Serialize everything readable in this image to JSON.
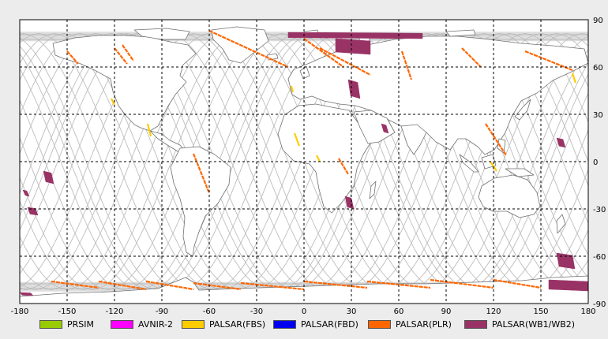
{
  "map": {
    "lon_range": [
      -180,
      180
    ],
    "lat_range": [
      -90,
      90
    ],
    "lon_ticks": [
      "-180",
      "-150",
      "-120",
      "-90",
      "-60",
      "-30",
      "0",
      "30",
      "60",
      "90",
      "120",
      "150",
      "180"
    ],
    "lat_ticks": [
      "90",
      "60",
      "30",
      "0",
      "-30",
      "-60",
      "-90"
    ],
    "grid": "dashed",
    "projection": "equirectangular",
    "colors": {
      "background": "#ececec",
      "ocean": "#ffffff",
      "coastline": "#707070",
      "orbit_track": "#bdbdbd",
      "grid": "#000000"
    }
  },
  "legend": [
    {
      "label": "PRSIM",
      "color": "#99cc00"
    },
    {
      "label": "AVNIR-2",
      "color": "#ff00ff"
    },
    {
      "label": "PALSAR(FBS)",
      "color": "#ffcc00"
    },
    {
      "label": "PALSAR(FBD)",
      "color": "#0000ee"
    },
    {
      "label": "PALSAR(PLR)",
      "color": "#ff6600"
    },
    {
      "label": "PALSAR(WB1/WB2)",
      "color": "#993366"
    }
  ],
  "observations": {
    "wb": [
      {
        "lon": [
          -10,
          75
        ],
        "lat": [
          82,
          78
        ]
      },
      {
        "lon": [
          20,
          42
        ],
        "lat": [
          78,
          68
        ]
      },
      {
        "lon": [
          28,
          34
        ],
        "lat": [
          52,
          40
        ]
      },
      {
        "lon": [
          49,
          52
        ],
        "lat": [
          24,
          18
        ]
      },
      {
        "lon": [
          26,
          30
        ],
        "lat": [
          -22,
          -30
        ]
      },
      {
        "lon": [
          -165,
          -160
        ],
        "lat": [
          -6,
          -14
        ]
      },
      {
        "lon": [
          -178,
          -176
        ],
        "lat": [
          -18,
          -22
        ]
      },
      {
        "lon": [
          -175,
          -170
        ],
        "lat": [
          -29,
          -34
        ]
      },
      {
        "lon": [
          160,
          164
        ],
        "lat": [
          15,
          9
        ]
      },
      {
        "lon": [
          160,
          170
        ],
        "lat": [
          -58,
          -68
        ]
      },
      {
        "lon": [
          155,
          180
        ],
        "lat": [
          -75,
          -82
        ]
      },
      {
        "lon": [
          -180,
          -173
        ],
        "lat": [
          -83,
          -85
        ]
      }
    ],
    "plr": [
      {
        "lon": [
          -60,
          -10
        ],
        "lat": [
          83,
          60
        ]
      },
      {
        "lon": [
          0,
          25
        ],
        "lat": [
          78,
          60
        ]
      },
      {
        "lon": [
          10,
          42
        ],
        "lat": [
          72,
          55
        ]
      },
      {
        "lon": [
          -150,
          -143
        ],
        "lat": [
          70,
          62
        ]
      },
      {
        "lon": [
          -120,
          -112
        ],
        "lat": [
          72,
          62
        ]
      },
      {
        "lon": [
          -115,
          -108
        ],
        "lat": [
          74,
          64
        ]
      },
      {
        "lon": [
          100,
          112
        ],
        "lat": [
          72,
          60
        ]
      },
      {
        "lon": [
          140,
          170
        ],
        "lat": [
          70,
          58
        ]
      },
      {
        "lon": [
          -70,
          -60
        ],
        "lat": [
          5,
          -20
        ]
      },
      {
        "lon": [
          22,
          28
        ],
        "lat": [
          2,
          -8
        ]
      },
      {
        "lon": [
          62,
          68
        ],
        "lat": [
          70,
          52
        ]
      },
      {
        "lon": [
          115,
          128
        ],
        "lat": [
          24,
          4
        ]
      },
      {
        "lon": [
          -160,
          -130
        ],
        "lat": [
          -76,
          -80
        ]
      },
      {
        "lon": [
          -130,
          -100
        ],
        "lat": [
          -76,
          -81
        ]
      },
      {
        "lon": [
          -100,
          -70
        ],
        "lat": [
          -76,
          -81
        ]
      },
      {
        "lon": [
          -70,
          -40
        ],
        "lat": [
          -77,
          -81
        ]
      },
      {
        "lon": [
          -40,
          0
        ],
        "lat": [
          -77,
          -81
        ]
      },
      {
        "lon": [
          0,
          40
        ],
        "lat": [
          -76,
          -80
        ]
      },
      {
        "lon": [
          40,
          80
        ],
        "lat": [
          -76,
          -80
        ]
      },
      {
        "lon": [
          80,
          120
        ],
        "lat": [
          -75,
          -80
        ]
      },
      {
        "lon": [
          120,
          150
        ],
        "lat": [
          -75,
          -80
        ]
      }
    ],
    "fbs": [
      {
        "lon": [
          -122,
          -120
        ],
        "lat": [
          40,
          36
        ]
      },
      {
        "lon": [
          -99,
          -97
        ],
        "lat": [
          24,
          16
        ]
      },
      {
        "lon": [
          -6,
          -3
        ],
        "lat": [
          18,
          10
        ]
      },
      {
        "lon": [
          8,
          10
        ],
        "lat": [
          4,
          0
        ]
      },
      {
        "lon": [
          118,
          122
        ],
        "lat": [
          0,
          -6
        ]
      },
      {
        "lon": [
          170,
          172
        ],
        "lat": [
          56,
          50
        ]
      },
      {
        "lon": [
          -8,
          -7
        ],
        "lat": [
          48,
          44
        ]
      }
    ]
  }
}
